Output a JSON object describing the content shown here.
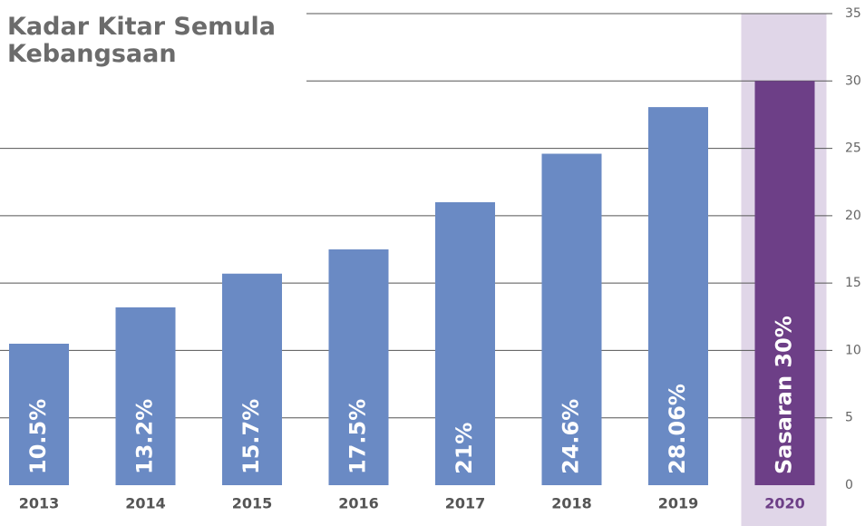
{
  "chart_data": {
    "type": "bar",
    "title": "Kadar Kitar Semula Kebangsaan",
    "categories": [
      "2013",
      "2014",
      "2015",
      "2016",
      "2017",
      "2018",
      "2019",
      "2020"
    ],
    "values": [
      10.5,
      13.2,
      15.7,
      17.5,
      21,
      24.6,
      28.06,
      30
    ],
    "value_labels": [
      "10.5%",
      "13.2%",
      "15.7%",
      "17.5%",
      "21%",
      "24.6%",
      "28.06%",
      "Sasaran 30%"
    ],
    "color": "#6a8ac4",
    "colors": [
      "#6a8ac4",
      "#6a8ac4",
      "#6a8ac4",
      "#6a8ac4",
      "#6a8ac4",
      "#6a8ac4",
      "#6a8ac4",
      "#6d3f87"
    ],
    "band_color": "#e0d6e8",
    "ylim": [
      0,
      35
    ],
    "yticks": [
      0,
      5,
      10,
      15,
      20,
      25,
      30,
      35
    ],
    "grid": true
  }
}
